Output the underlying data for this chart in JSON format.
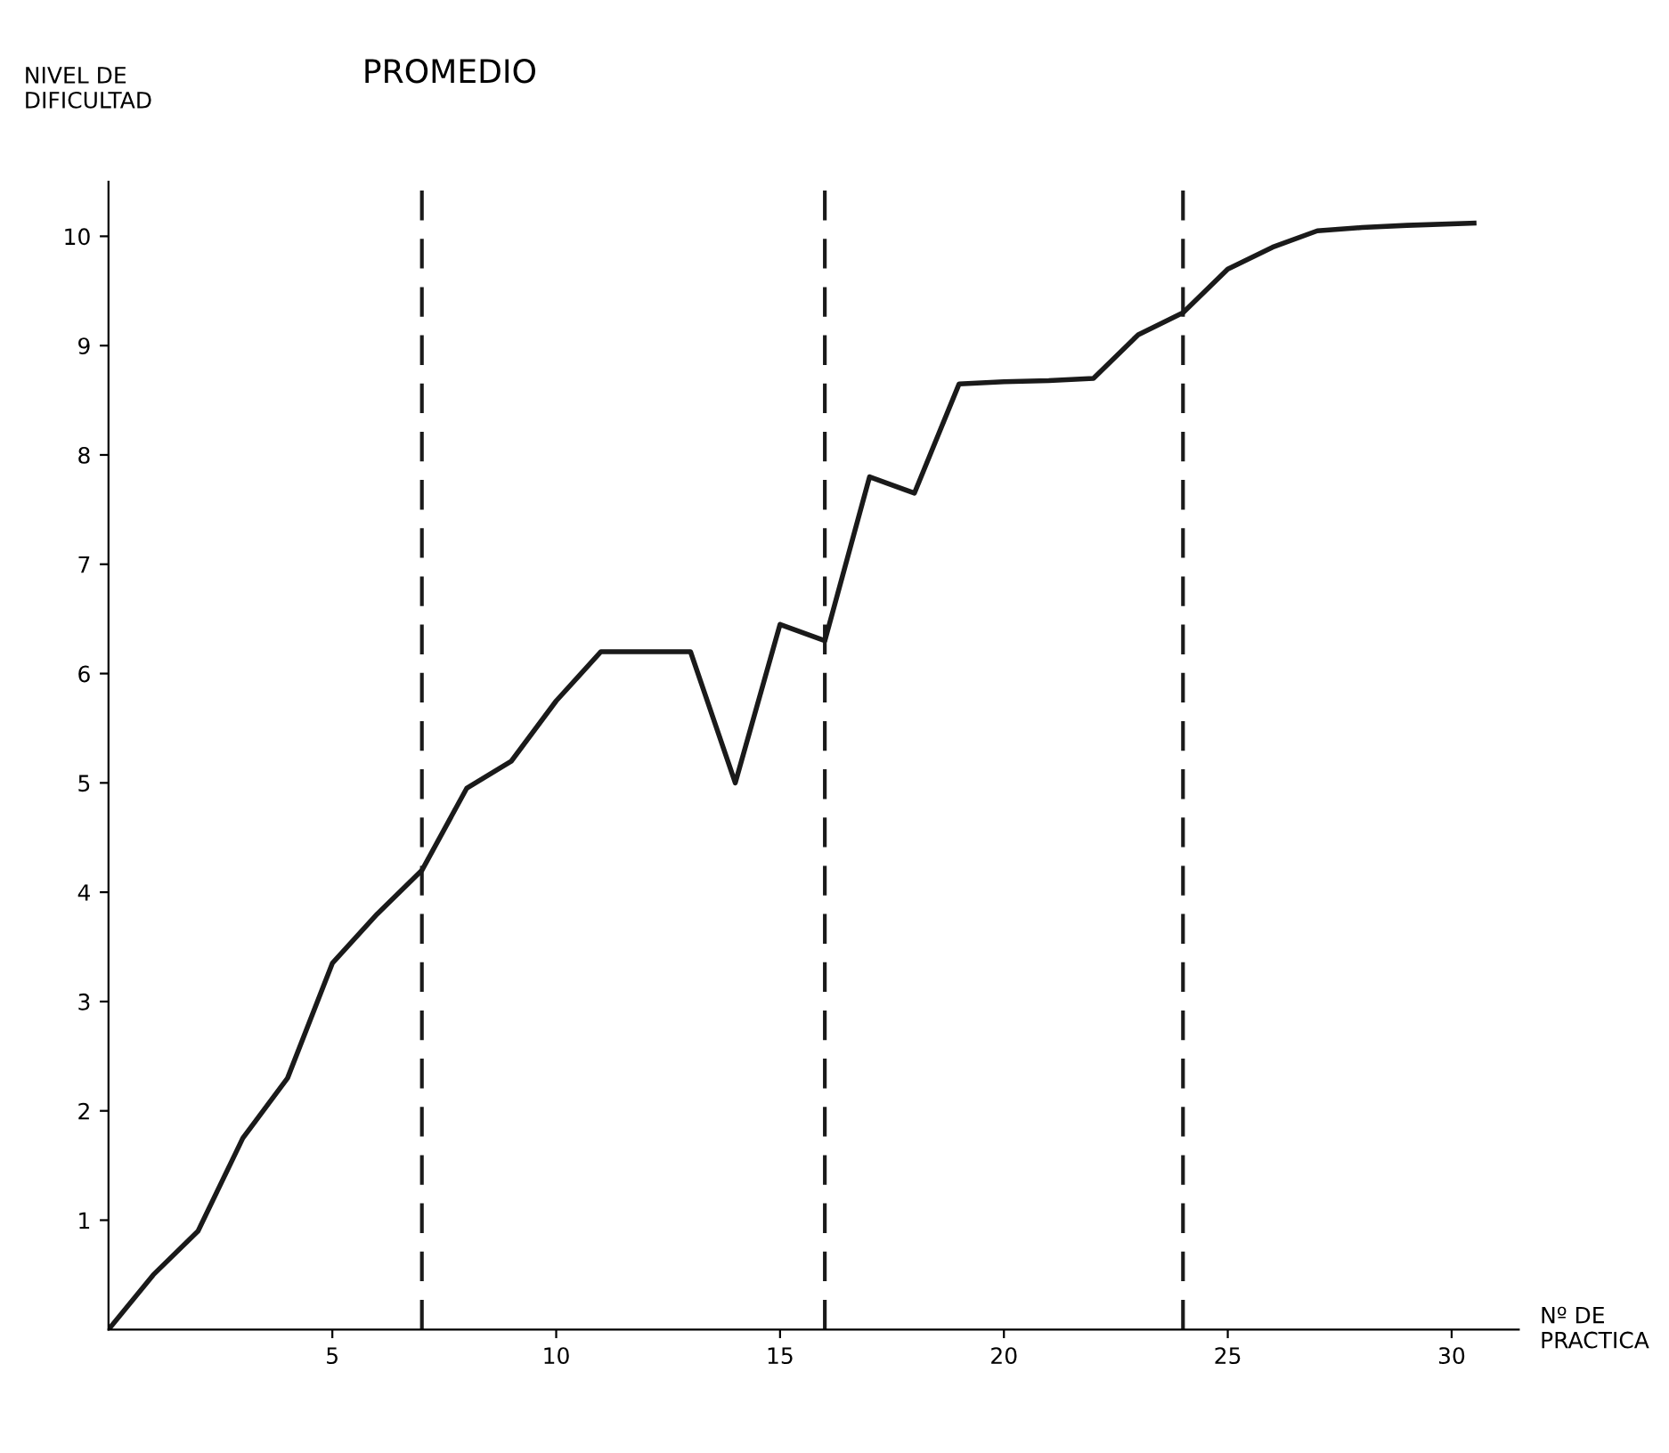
{
  "chart_data": {
    "type": "line",
    "title": "PROMEDIO",
    "ylabel": "NIVEL DE\nDIFICULTAD",
    "xlabel": "Nº DE\nPRACTICA",
    "x": [
      0,
      1,
      2,
      3,
      4,
      5,
      6,
      7,
      8,
      9,
      10,
      11,
      12,
      13,
      14,
      15,
      16,
      17,
      18,
      19,
      20,
      21,
      22,
      23,
      24,
      25,
      26,
      27,
      28,
      29,
      30.5
    ],
    "series": [
      {
        "color": "#1a1a1a",
        "values": [
          0,
          0.5,
          0.9,
          1.75,
          2.3,
          3.35,
          3.8,
          4.2,
          4.95,
          5.2,
          5.75,
          6.2,
          6.2,
          6.2,
          5.0,
          6.45,
          6.3,
          7.8,
          7.65,
          8.65,
          8.67,
          8.68,
          8.7,
          9.1,
          9.3,
          9.7,
          9.9,
          10.05,
          10.08,
          10.1,
          10.12
        ]
      }
    ],
    "xlim": [
      0,
      31.5
    ],
    "ylim": [
      0,
      10.5
    ],
    "xticks": [
      5,
      10,
      15,
      20,
      25,
      30
    ],
    "yticks": [
      1,
      2,
      3,
      4,
      5,
      6,
      7,
      8,
      9,
      10
    ],
    "ref_lines": [
      {
        "axis": "x",
        "value": 7,
        "color": "#1a1a1a",
        "line_style": "dashed"
      },
      {
        "axis": "x",
        "value": 16,
        "color": "#1a1a1a",
        "line_style": "dashed"
      },
      {
        "axis": "x",
        "value": 24,
        "color": "#1a1a1a",
        "line_style": "dashed"
      }
    ],
    "grid": false,
    "legend": false,
    "marker": "none",
    "line_style": "solid"
  }
}
